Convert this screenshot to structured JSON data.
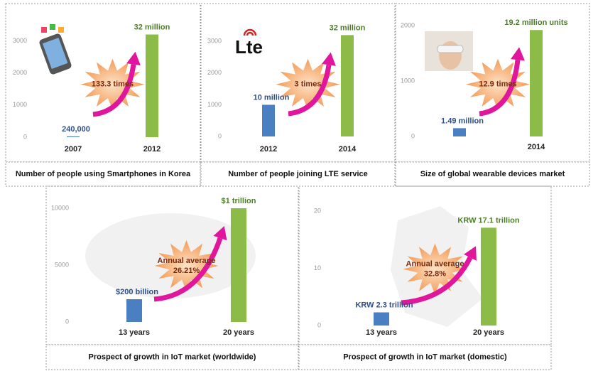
{
  "chart_data": [
    {
      "type": "bar",
      "caption": "Number of people using Smartphones in Korea",
      "categories": [
        "2007",
        "2012"
      ],
      "values": [
        24,
        3200
      ],
      "value_labels": [
        "240,000",
        "32 million"
      ],
      "colors": [
        "#4a7fc1",
        "#8cbb47"
      ],
      "ylim": [
        0,
        3500
      ],
      "yticks": [
        0,
        1000,
        2000,
        3000
      ],
      "annotation": [
        "133.3 times"
      ]
    },
    {
      "type": "bar",
      "caption": "Number of people joining LTE service",
      "logo_text": "Lte",
      "categories": [
        "2012",
        "2014"
      ],
      "values": [
        1000,
        3200
      ],
      "value_labels": [
        "10 million",
        "32 million"
      ],
      "colors": [
        "#4a7fc1",
        "#8cbb47"
      ],
      "ylim": [
        0,
        3500
      ],
      "yticks": [
        0,
        1000,
        2000,
        3000
      ],
      "annotation": [
        "3 times"
      ]
    },
    {
      "type": "bar",
      "caption": "Size of global wearable devices market",
      "categories": [
        null,
        "2014"
      ],
      "values": [
        149,
        1920
      ],
      "value_labels": [
        "1.49 million",
        "19.2 million units"
      ],
      "colors": [
        "#4a7fc1",
        "#8cbb47"
      ],
      "ylim": [
        0,
        2000
      ],
      "yticks": [
        0,
        1000,
        2000
      ],
      "annotation": [
        "12.9 times"
      ]
    },
    {
      "type": "bar",
      "caption": "Prospect of growth in IoT market (worldwide)",
      "categories": [
        "13 years",
        "20 years"
      ],
      "values": [
        2000,
        10000
      ],
      "value_labels": [
        "$200 billion",
        "$1 trillion"
      ],
      "colors": [
        "#4a7fc1",
        "#8cbb47"
      ],
      "ylim": [
        0,
        10500
      ],
      "yticks": [
        0,
        5000,
        10000
      ],
      "annotation": [
        "Annual average",
        "26.21%"
      ]
    },
    {
      "type": "bar",
      "caption": "Prospect of growth in IoT market (domestic)",
      "categories": [
        "13 years",
        "20 years"
      ],
      "values": [
        2.3,
        17.1
      ],
      "value_labels": [
        "KRW 2.3 trillion",
        "KRW 17.1 trillion"
      ],
      "colors": [
        "#4a7fc1",
        "#8cbb47"
      ],
      "ylim": [
        0,
        21
      ],
      "yticks": [
        0,
        10,
        20
      ],
      "annotation": [
        "Annual average",
        "32.8%"
      ]
    }
  ]
}
